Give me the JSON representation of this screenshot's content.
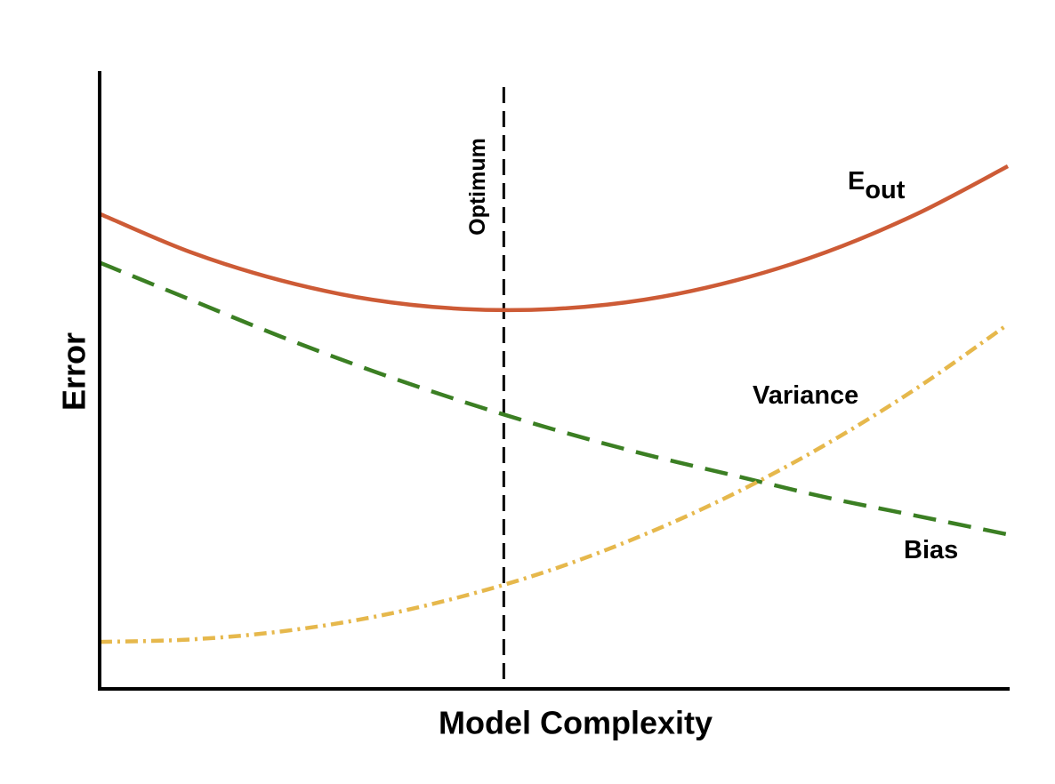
{
  "chart_data": {
    "type": "line",
    "x_label": "Model Complexity",
    "y_label": "Error",
    "xlim": [
      0,
      10
    ],
    "ylim": [
      0,
      10
    ],
    "x": [
      0,
      1,
      2,
      3,
      4,
      5,
      6,
      7,
      8,
      9,
      10
    ],
    "series": [
      {
        "name": "E",
        "subscript": "out",
        "color": "#cd5b36",
        "line_style": "solid",
        "values": [
          7.69,
          7.07,
          6.61,
          6.3,
          6.15,
          6.15,
          6.3,
          6.61,
          7.07,
          7.69,
          8.46
        ]
      },
      {
        "name": "Bias",
        "color": "#3b7f23",
        "line_style": "dashed",
        "values": [
          6.9,
          6.3,
          5.7,
          5.15,
          4.65,
          4.2,
          3.8,
          3.45,
          3.1,
          2.8,
          2.5
        ]
      },
      {
        "name": "Variance",
        "color": "#e6b84c",
        "line_style": "dashdot",
        "values": [
          0.76,
          0.8,
          0.93,
          1.16,
          1.5,
          1.94,
          2.5,
          3.17,
          3.96,
          4.87,
          5.9
        ]
      }
    ],
    "optimum": {
      "label": "Optimum",
      "x": 4.45
    }
  }
}
